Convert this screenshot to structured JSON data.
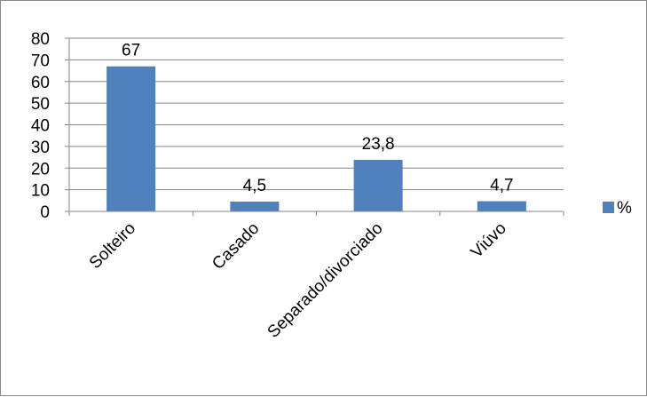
{
  "chart_data": {
    "type": "bar",
    "categories": [
      "Solteiro",
      "Casado",
      "Separado/divorciado",
      "Viúvo"
    ],
    "series": [
      {
        "name": "%",
        "values": [
          67,
          4.5,
          23.8,
          4.7
        ],
        "color": "#4f81bd"
      }
    ],
    "data_labels": [
      "67",
      "4,5",
      "23,8",
      "4,7"
    ],
    "ylim": [
      0,
      80
    ],
    "yticks": [
      0,
      10,
      20,
      30,
      40,
      50,
      60,
      70,
      80
    ],
    "grid": true,
    "legend": {
      "position": "right",
      "entries": [
        "%"
      ]
    },
    "title": "",
    "xlabel": "",
    "ylabel": ""
  }
}
